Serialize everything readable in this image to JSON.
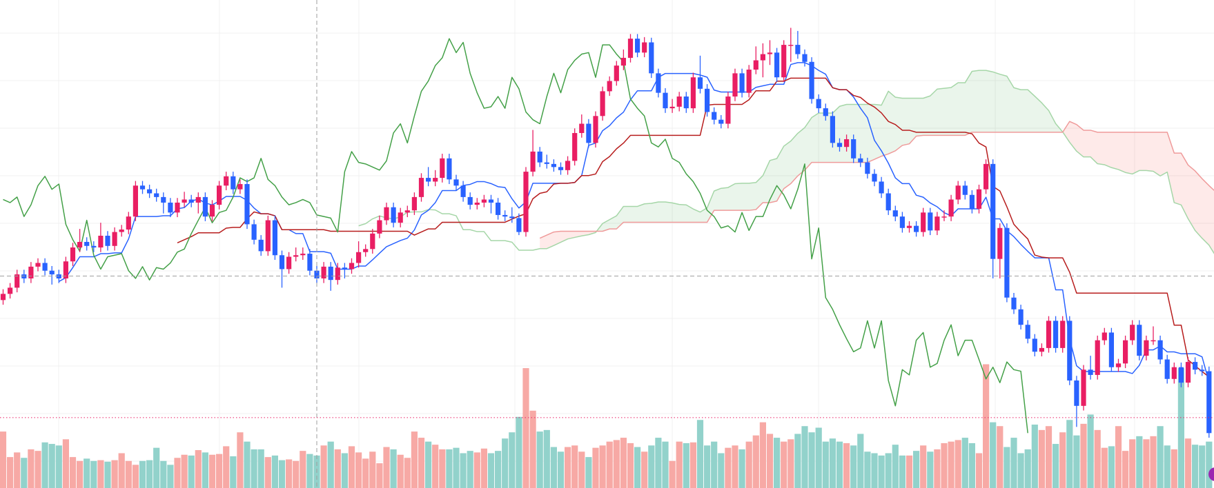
{
  "chart_data": {
    "type": "candlestick-ichimoku",
    "title": "",
    "xlabel": "",
    "ylabel": "",
    "ylim": [
      58,
      200
    ],
    "grid": true,
    "candle_colors": {
      "up": "#e91e63",
      "down": "#2962ff"
    },
    "volume_colors": {
      "up": "#f7a9a5",
      "down": "#92d2cb"
    },
    "indicator_colors": {
      "tenkan": "#2962ff",
      "kijun": "#b71c1c",
      "chikou": "#43a047",
      "span_a": "#a5d6a7",
      "span_b": "#ef9a9a",
      "cloud_bull": "rgba(67,160,71,0.11)",
      "cloud_bear": "rgba(244,67,54,0.11)"
    },
    "ichimoku_periods": {
      "tenkan": 9,
      "kijun": 26,
      "span_b": 52,
      "displacement": 26
    },
    "crosshair": {
      "price": 110.75,
      "index": 45
    },
    "volume_level": 91,
    "open": [
      103,
      105,
      107,
      111.3,
      110,
      113.8,
      115,
      112.5,
      111.3,
      110,
      115.5,
      120,
      121.8,
      120.5,
      120,
      123.8,
      120.5,
      125,
      125.8,
      130,
      140,
      138.8,
      137.5,
      136.3,
      134.5,
      131.3,
      134.5,
      135.5,
      134.5,
      136.3,
      130,
      133.8,
      140,
      143,
      138.8,
      140.5,
      127.5,
      122.5,
      118.8,
      128.8,
      117.5,
      113,
      117,
      117.5,
      118,
      112.5,
      110,
      113.8,
      109.5,
      113.5,
      113,
      115,
      118.5,
      119.5,
      124.5,
      128.8,
      133,
      128,
      131.3,
      132,
      136.3,
      142.5,
      141.3,
      142.5,
      148.8,
      142,
      140,
      136.3,
      133.8,
      134.5,
      135.5,
      134.5,
      130.5,
      130,
      129.5,
      125,
      144.5,
      151,
      147.5,
      147,
      146,
      145,
      148,
      157,
      160,
      153.8,
      162.5,
      170.5,
      173.8,
      178.8,
      181.3,
      187.5,
      183,
      186.3,
      176.3,
      170,
      165,
      165.5,
      168.8,
      165,
      175,
      171.3,
      163.8,
      161.3,
      160,
      168.8,
      176.3,
      170,
      177.5,
      180.5,
      182.5,
      183,
      175,
      185.5,
      185.5,
      182.5,
      180,
      168,
      165,
      162.5,
      153.8,
      152.5,
      155,
      148.8,
      147.5,
      143.8,
      141.3,
      137.5,
      132,
      130,
      126.3,
      127,
      125,
      131.3,
      125.5,
      130,
      130,
      135.5,
      140,
      137,
      132.5,
      138.8,
      147,
      116.3,
      126.3,
      103.8,
      100,
      95,
      90.5,
      86.3,
      87.5,
      96.3,
      87.5,
      96.3,
      77,
      68.8,
      80.5,
      78.8,
      90,
      92.5,
      81.3,
      82.5,
      90,
      95,
      85,
      90,
      90,
      83.8,
      77.5,
      81.3,
      76.3,
      83,
      80.5,
      80
    ],
    "high": [
      106.5,
      108.5,
      112.8,
      112.8,
      115.3,
      116.5,
      116.5,
      114,
      112.8,
      117,
      121.5,
      126,
      123.3,
      122,
      128,
      125.3,
      126.5,
      127.3,
      131.5,
      141.5,
      141.5,
      140.3,
      139,
      137.8,
      136,
      136,
      138,
      137,
      137.8,
      137.8,
      135.3,
      141.5,
      144.5,
      144.5,
      142,
      142,
      129,
      124,
      130.3,
      130.3,
      119,
      118.5,
      120,
      120,
      119.5,
      114,
      115.3,
      115.3,
      115,
      115,
      116.5,
      122,
      121,
      126,
      130.3,
      134.5,
      134.5,
      132.8,
      133.5,
      137.8,
      144,
      146,
      145,
      150.3,
      150.3,
      143.5,
      141.5,
      137.8,
      136,
      137,
      137,
      136,
      132,
      133,
      131,
      146,
      158,
      152.5,
      150,
      148.5,
      147.5,
      149.5,
      158.5,
      163,
      161.5,
      164,
      172,
      175.3,
      180.3,
      184,
      189,
      189,
      188,
      187.8,
      177.8,
      171.5,
      168,
      170.3,
      170.3,
      176.5,
      182,
      172.8,
      165.3,
      162.8,
      170.3,
      177.8,
      177.8,
      179,
      185,
      186,
      187,
      184.5,
      187,
      191,
      190,
      184,
      181.5,
      169.5,
      166.5,
      164,
      155.3,
      156.5,
      156.5,
      150.3,
      149,
      145.3,
      142.8,
      139,
      133.5,
      131.5,
      128.5,
      128.5,
      132.8,
      132.8,
      131.5,
      132,
      137,
      141.5,
      141.5,
      138.5,
      140.3,
      148.5,
      148.5,
      127.8,
      127.8,
      105.3,
      101.5,
      96.5,
      92,
      89,
      97.8,
      97.8,
      97.8,
      97.8,
      78.5,
      82,
      85,
      91.5,
      94,
      94,
      84,
      91.5,
      96.5,
      96.5,
      91.5,
      94.5,
      91.5,
      85.3,
      82.8,
      82.8,
      84.5,
      84.5,
      82,
      81.5
    ],
    "low": [
      101.5,
      103.5,
      105.5,
      108.5,
      108.5,
      112.3,
      111,
      108,
      108.5,
      108.5,
      114,
      118.5,
      119,
      118.5,
      118.5,
      119,
      119,
      123.5,
      124.3,
      128.5,
      137.3,
      136,
      134.8,
      131,
      129.8,
      129.8,
      133,
      133,
      131,
      128.5,
      128.5,
      132.3,
      138.5,
      137.3,
      137.3,
      126,
      121,
      117.3,
      117.3,
      116,
      107,
      111.5,
      115.5,
      116,
      111,
      108.5,
      108.5,
      106,
      108,
      110,
      111.5,
      113.5,
      117,
      118,
      123,
      127.3,
      126.5,
      126.5,
      129.8,
      130.5,
      134.8,
      139.8,
      139.8,
      141,
      140.5,
      138.5,
      134.8,
      132.3,
      132.3,
      133,
      131,
      129,
      128.5,
      128,
      124,
      123.5,
      143,
      146,
      145.5,
      144.5,
      143.5,
      143.5,
      146.5,
      155.5,
      152.3,
      152.3,
      161,
      169,
      172.3,
      177.3,
      179.8,
      181.5,
      181.5,
      174.8,
      168.5,
      163.5,
      163.5,
      164,
      163.5,
      163.5,
      169.8,
      162.3,
      159.8,
      158.5,
      158.5,
      167.3,
      168.5,
      168.5,
      176,
      175,
      179,
      173.5,
      173.5,
      180,
      181,
      178.5,
      166.5,
      163.5,
      161,
      152.3,
      151,
      151,
      147.3,
      146,
      142.3,
      139.8,
      136,
      130.5,
      128.5,
      124.8,
      124.8,
      123.5,
      123.5,
      124,
      124,
      128.5,
      128.5,
      134,
      135.5,
      131,
      131,
      137.3,
      110,
      110,
      102.3,
      98.5,
      93.5,
      89,
      84.8,
      84.8,
      86,
      86,
      86,
      75.5,
      62,
      67.3,
      77.3,
      77.3,
      88.5,
      79.8,
      79.8,
      81,
      88.5,
      83.5,
      83.5,
      88.5,
      82.3,
      76,
      76,
      74.8,
      74.8,
      79,
      78.5,
      58.5
    ],
    "close": [
      105,
      107,
      111.3,
      110,
      113.8,
      115,
      112.5,
      111.3,
      110,
      115.5,
      120,
      121.8,
      120.5,
      120,
      123.8,
      120.5,
      125,
      125.8,
      130,
      140,
      138.8,
      137.5,
      136.3,
      134.5,
      131.3,
      134.5,
      135.5,
      134.5,
      136.3,
      130,
      133.8,
      140,
      143,
      138.8,
      140.5,
      127.5,
      122.5,
      118.8,
      128.8,
      117.5,
      113,
      117,
      117.5,
      118,
      112.5,
      110,
      113.8,
      109.5,
      113.5,
      113,
      115,
      118.5,
      119.5,
      124.5,
      128.8,
      133,
      128,
      131.3,
      132,
      136.3,
      142.5,
      141.3,
      142.5,
      148.8,
      142,
      140,
      136.3,
      133.8,
      134.5,
      135.5,
      134.5,
      130.5,
      130,
      129.5,
      125,
      144.5,
      151,
      147.5,
      147,
      146,
      145,
      148,
      157,
      160,
      153.8,
      162.5,
      170.5,
      173.8,
      178.8,
      181.3,
      187.5,
      183,
      186.3,
      176.3,
      170,
      165,
      165.5,
      168.8,
      165,
      175,
      171.3,
      163.8,
      161.3,
      160,
      168.8,
      176.3,
      170,
      177.5,
      180.5,
      182.5,
      183,
      175,
      185.5,
      185.5,
      182.5,
      180,
      168,
      165,
      162.5,
      153.8,
      152.5,
      155,
      148.8,
      147.5,
      143.8,
      141.3,
      137.5,
      132,
      130,
      126.3,
      127,
      125,
      131.3,
      125.5,
      130,
      130,
      135.5,
      140,
      137,
      132.5,
      138.8,
      147,
      116.3,
      126.3,
      103.8,
      100,
      95,
      90.5,
      86.3,
      87.5,
      96.3,
      87.5,
      96.3,
      77,
      68.8,
      80.5,
      78.8,
      90,
      92.5,
      81.3,
      82.5,
      90,
      95,
      85,
      90,
      90,
      83.8,
      77.5,
      81.3,
      76.3,
      83,
      80.5,
      80,
      60
    ],
    "volume": [
      73,
      40,
      46,
      39,
      50,
      48,
      59,
      57,
      55,
      63,
      40,
      35,
      38,
      35,
      36,
      34,
      36,
      45,
      35,
      30,
      35,
      36,
      52,
      35,
      30,
      39,
      43,
      42,
      49,
      46,
      43,
      44,
      54,
      41,
      72,
      60,
      50,
      50,
      40,
      42,
      36,
      37,
      35,
      48,
      44,
      42,
      55,
      60,
      50,
      45,
      54,
      46,
      38,
      47,
      32,
      53,
      50,
      43,
      39,
      73,
      65,
      60,
      56,
      50,
      50,
      52,
      45,
      48,
      46,
      51,
      45,
      48,
      64,
      72,
      92,
      155,
      100,
      73,
      75,
      53,
      47,
      53,
      55,
      47,
      40,
      52,
      55,
      60,
      62,
      65,
      58,
      53,
      47,
      55,
      65,
      60,
      35,
      60,
      58,
      59,
      88,
      55,
      60,
      45,
      52,
      55,
      50,
      60,
      68,
      85,
      70,
      65,
      60,
      63,
      70,
      80,
      72,
      78,
      60,
      64,
      60,
      58,
      55,
      70,
      47,
      45,
      42,
      45,
      56,
      42,
      42,
      48,
      55,
      47,
      50,
      58,
      60,
      62,
      65,
      58,
      45,
      160,
      85,
      80,
      53,
      65,
      45,
      50,
      82,
      75,
      80,
      57,
      72,
      88,
      68,
      83,
      95,
      75,
      52,
      54,
      80,
      48,
      63,
      67,
      63,
      67,
      80,
      55,
      50,
      155,
      64,
      56,
      55,
      60
    ]
  },
  "marker": {
    "icon": "circle-marker-icon",
    "color": "#9c27b0"
  }
}
